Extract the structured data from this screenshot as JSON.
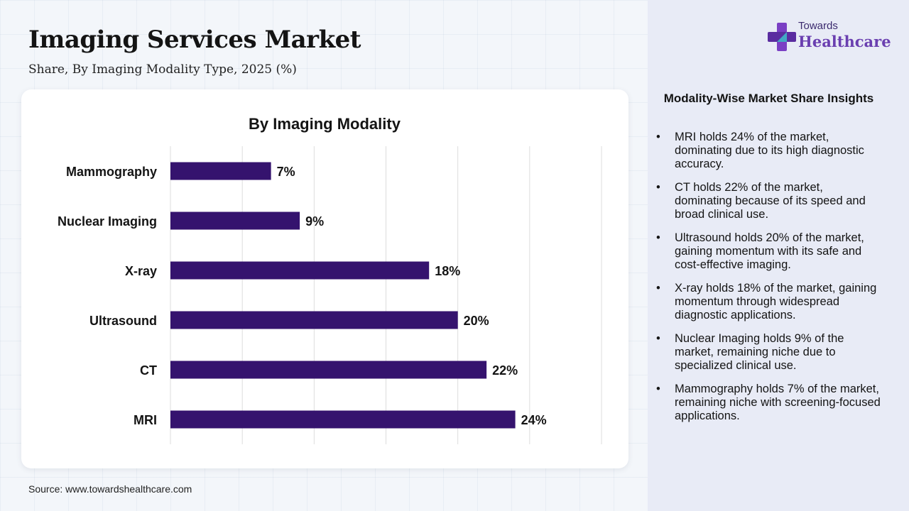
{
  "header": {
    "title": "Imaging Services Market",
    "subtitle": "Share, By Imaging Modality Type, 2025 (%)"
  },
  "logo": {
    "top_text": "Towards",
    "main_text": "Healthcare"
  },
  "source": "Source: www.towardshealthcare.com",
  "insights": {
    "title": "Modality-Wise Market Share Insights",
    "items": [
      "MRI holds 24% of the market, dominating due to its high diagnostic accuracy.",
      "CT holds 22% of the market, dominating because of its speed and broad clinical use.",
      "Ultrasound holds 20% of the market, gaining momentum with its safe and cost-effective imaging.",
      "X-ray holds 18% of the market, gaining momentum through widespread diagnostic applications.",
      "Nuclear Imaging holds 9% of the market, remaining niche due to specialized clinical use.",
      "Mammography holds 7% of the market, remaining niche with screening-focused applications."
    ]
  },
  "colors": {
    "bar": "#35136e",
    "gridline": "#dddddd",
    "logo_icon": "#7a3fc4",
    "panel": "#e8ebf6"
  },
  "chart_data": {
    "type": "bar",
    "orientation": "horizontal",
    "title": "By Imaging Modality",
    "categories": [
      "Mammography",
      "Nuclear Imaging",
      "X-ray",
      "Ultrasound",
      "CT",
      "MRI"
    ],
    "values": [
      7,
      9,
      18,
      20,
      22,
      24
    ],
    "value_labels": [
      "7%",
      "9%",
      "18%",
      "20%",
      "22%",
      "24%"
    ],
    "unit": "%",
    "xlim": [
      0,
      30
    ],
    "grid": true,
    "xlabel": "",
    "ylabel": ""
  }
}
